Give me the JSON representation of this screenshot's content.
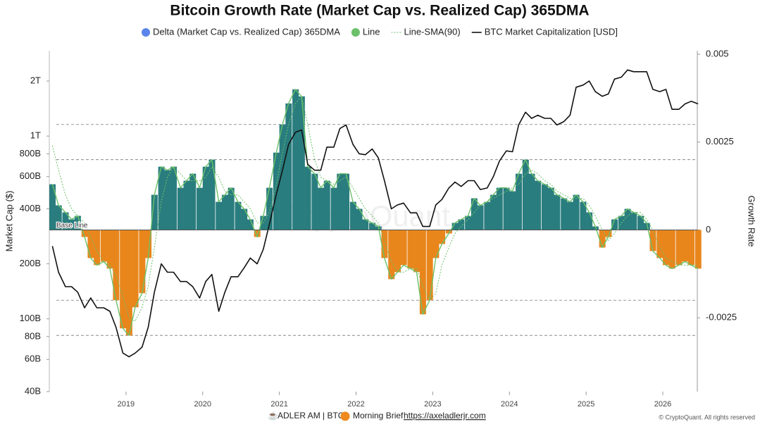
{
  "chart_data": {
    "type": "combo",
    "title": "Bitcoin Growth Rate (Market Cap vs. Realized Cap) 365DMA",
    "ylabel": "Market Cap ($)",
    "y2label": "Growth Rate",
    "annotation": "Base Line",
    "watermark": "CryptoQuant",
    "footer": {
      "source": "ADLER AM | BTC",
      "brief": "Morning Brief",
      "link": "https://axeladlerjr.com",
      "copyright": "© CryptoQuant. All rights reserved"
    },
    "x": [
      2018.04,
      2018.12,
      2018.21,
      2018.29,
      2018.37,
      2018.46,
      2018.54,
      2018.62,
      2018.71,
      2018.79,
      2018.87,
      2018.96,
      2019.04,
      2019.12,
      2019.21,
      2019.29,
      2019.37,
      2019.46,
      2019.54,
      2019.62,
      2019.71,
      2019.79,
      2019.87,
      2019.96,
      2020.04,
      2020.12,
      2020.21,
      2020.29,
      2020.37,
      2020.46,
      2020.54,
      2020.62,
      2020.71,
      2020.79,
      2020.87,
      2020.96,
      2021.04,
      2021.12,
      2021.21,
      2021.29,
      2021.37,
      2021.46,
      2021.54,
      2021.62,
      2021.71,
      2021.79,
      2021.87,
      2021.96,
      2022.04,
      2022.12,
      2022.21,
      2022.29,
      2022.37,
      2022.46,
      2022.54,
      2022.62,
      2022.71,
      2022.79,
      2022.87,
      2022.96,
      2023.04,
      2023.12,
      2023.21,
      2023.29,
      2023.37,
      2023.46,
      2023.54,
      2023.62,
      2023.71,
      2023.79,
      2023.87,
      2023.96,
      2024.04,
      2024.12,
      2024.21,
      2024.29,
      2024.37,
      2024.46,
      2024.54,
      2024.62,
      2024.71,
      2024.79,
      2024.87,
      2024.96,
      2025.04,
      2025.12,
      2025.21,
      2025.29,
      2025.37,
      2025.46,
      2025.54,
      2025.62,
      2025.71,
      2025.79,
      2025.87,
      2025.96,
      2026.04,
      2026.12,
      2026.21,
      2026.29,
      2026.37,
      2026.46
    ],
    "xlim": [
      2018.0,
      2026.45
    ],
    "xticks": [
      2019,
      2020,
      2021,
      2022,
      2023,
      2024,
      2025,
      2026
    ],
    "ylog": true,
    "ylim": [
      40000000000,
      2930000000000
    ],
    "yticks": [
      {
        "value": 40000000000,
        "label": "40B"
      },
      {
        "value": 60000000000,
        "label": "60B"
      },
      {
        "value": 80000000000,
        "label": "80B"
      },
      {
        "value": 100000000000,
        "label": "100B"
      },
      {
        "value": 200000000000,
        "label": "200B"
      },
      {
        "value": 400000000000,
        "label": "400B"
      },
      {
        "value": 600000000000,
        "label": "600B"
      },
      {
        "value": 800000000000,
        "label": "800B"
      },
      {
        "value": 1000000000000,
        "label": "1T"
      },
      {
        "value": 2000000000000,
        "label": "2T"
      }
    ],
    "y2lim": [
      -0.0046,
      0.0051
    ],
    "y2ticks": [
      -0.0025,
      0,
      0.0025,
      0.005
    ],
    "ref_lines": [
      0.003,
      0.002,
      -0.002,
      -0.003
    ],
    "pos_color": "#2a7d7e",
    "neg_color": "#e8861c",
    "series": [
      {
        "name": "Delta (Market Cap vs. Realized Cap) 365DMA",
        "color": "#5a84ea",
        "axis": "y2",
        "style": "bars",
        "values": [
          0.0013,
          0.0007,
          0.0005,
          0.0003,
          0.0004,
          -0.0002,
          -0.0008,
          -0.001,
          -0.0009,
          -0.0011,
          -0.002,
          -0.0028,
          -0.003,
          -0.0022,
          -0.0018,
          -0.0008,
          0.001,
          0.0018,
          0.0017,
          0.0018,
          0.0012,
          0.0014,
          0.0016,
          0.0012,
          0.0018,
          0.002,
          0.0008,
          0.001,
          0.0012,
          0.0008,
          0.0006,
          0.0003,
          -0.0002,
          0.0004,
          0.0012,
          0.0022,
          0.003,
          0.0036,
          0.004,
          0.0038,
          0.0018,
          0.0016,
          0.0012,
          0.0014,
          0.0012,
          0.0016,
          0.0016,
          0.0008,
          0.0006,
          0.0003,
          0.0002,
          0.0001,
          -0.0008,
          -0.0014,
          -0.0012,
          -0.001,
          -0.0011,
          -0.0012,
          -0.0024,
          -0.002,
          -0.0008,
          -0.0004,
          -0.0001,
          0.0002,
          0.0003,
          0.0004,
          0.0009,
          0.0007,
          0.0008,
          0.001,
          0.0012,
          0.0012,
          0.0011,
          0.0016,
          0.002,
          0.0016,
          0.0014,
          0.0013,
          0.0012,
          0.001,
          0.0009,
          0.0008,
          0.001,
          0.0008,
          0.0005,
          0.0001,
          -0.0005,
          -0.0002,
          0.0003,
          0.0004,
          0.0006,
          0.0005,
          0.0004,
          0.0002,
          -0.0006,
          -0.0008,
          -0.001,
          -0.0011,
          -0.001,
          -0.0009,
          -0.001,
          -0.0011
        ]
      },
      {
        "name": "Line",
        "color": "#6cc06a",
        "axis": "y2",
        "style": "line",
        "values": [
          0.0013,
          0.0007,
          0.0005,
          0.0003,
          0.0004,
          -0.0002,
          -0.0008,
          -0.001,
          -0.0009,
          -0.0011,
          -0.002,
          -0.0028,
          -0.003,
          -0.0022,
          -0.0018,
          -0.0008,
          0.001,
          0.0018,
          0.0017,
          0.0018,
          0.0012,
          0.0014,
          0.0016,
          0.0012,
          0.0018,
          0.002,
          0.0008,
          0.001,
          0.0012,
          0.0008,
          0.0006,
          0.0003,
          -0.0002,
          0.0004,
          0.0012,
          0.0022,
          0.003,
          0.0036,
          0.004,
          0.0038,
          0.0018,
          0.0016,
          0.0012,
          0.0014,
          0.0012,
          0.0016,
          0.0016,
          0.0008,
          0.0006,
          0.0003,
          0.0002,
          0.0001,
          -0.0008,
          -0.0014,
          -0.0012,
          -0.001,
          -0.0011,
          -0.0012,
          -0.0024,
          -0.002,
          -0.0008,
          -0.0004,
          -0.0001,
          0.0002,
          0.0003,
          0.0004,
          0.0009,
          0.0007,
          0.0008,
          0.001,
          0.0012,
          0.0012,
          0.0011,
          0.0016,
          0.002,
          0.0016,
          0.0014,
          0.0013,
          0.0012,
          0.001,
          0.0009,
          0.0008,
          0.001,
          0.0008,
          0.0005,
          0.0001,
          -0.0005,
          -0.0002,
          0.0003,
          0.0004,
          0.0006,
          0.0005,
          0.0004,
          0.0002,
          -0.0006,
          -0.0008,
          -0.001,
          -0.0011,
          -0.001,
          -0.0009,
          -0.001,
          -0.0011
        ]
      },
      {
        "name": "Line-SMA(90)",
        "color": "#6cc06a",
        "axis": "y2",
        "style": "dotted",
        "values": [
          0.0024,
          0.0017,
          0.001,
          0.0006,
          0.0004,
          0.0002,
          -0.0002,
          -0.0006,
          -0.0009,
          -0.001,
          -0.0013,
          -0.0019,
          -0.0025,
          -0.0026,
          -0.0022,
          -0.0016,
          -0.0005,
          0.0008,
          0.0015,
          0.0018,
          0.0016,
          0.0014,
          0.0014,
          0.0014,
          0.0015,
          0.0018,
          0.0015,
          0.0011,
          0.001,
          0.001,
          0.0008,
          0.0006,
          0.0002,
          0.0002,
          0.0005,
          0.0013,
          0.0022,
          0.003,
          0.0036,
          0.0038,
          0.003,
          0.002,
          0.0015,
          0.0014,
          0.0013,
          0.0014,
          0.0015,
          0.0012,
          0.0009,
          0.0006,
          0.0004,
          0.0002,
          -0.0003,
          -0.0009,
          -0.0012,
          -0.0012,
          -0.0011,
          -0.0011,
          -0.0016,
          -0.002,
          -0.0018,
          -0.001,
          -0.0005,
          -0.0001,
          0.0001,
          0.0003,
          0.0005,
          0.0007,
          0.0008,
          0.0009,
          0.001,
          0.0011,
          0.0012,
          0.0013,
          0.0016,
          0.0017,
          0.0016,
          0.0014,
          0.0013,
          0.0011,
          0.001,
          0.0009,
          0.0009,
          0.0009,
          0.0007,
          0.0004,
          0.0,
          -0.0003,
          -0.0001,
          0.0002,
          0.0004,
          0.0005,
          0.0005,
          0.0003,
          0.0,
          -0.0005,
          -0.0008,
          -0.0009,
          -0.001,
          -0.001,
          -0.001,
          -0.001
        ]
      },
      {
        "name": "BTC Market Capitalization [USD]",
        "color": "#111111",
        "axis": "y",
        "style": "line",
        "values": [
          250000000000.0,
          180000000000.0,
          150000000000.0,
          150000000000.0,
          140000000000.0,
          115000000000.0,
          130000000000.0,
          115000000000.0,
          115000000000.0,
          110000000000.0,
          90000000000.0,
          65000000000.0,
          62000000000.0,
          65000000000.0,
          70000000000.0,
          90000000000.0,
          140000000000.0,
          200000000000.0,
          180000000000.0,
          180000000000.0,
          160000000000.0,
          160000000000.0,
          150000000000.0,
          130000000000.0,
          160000000000.0,
          175000000000.0,
          110000000000.0,
          140000000000.0,
          170000000000.0,
          170000000000.0,
          190000000000.0,
          215000000000.0,
          200000000000.0,
          240000000000.0,
          330000000000.0,
          480000000000.0,
          650000000000.0,
          900000000000.0,
          1050000000000.0,
          1080000000000.0,
          700000000000.0,
          650000000000.0,
          650000000000.0,
          870000000000.0,
          870000000000.0,
          1100000000000.0,
          1150000000000.0,
          900000000000.0,
          800000000000.0,
          790000000000.0,
          850000000000.0,
          760000000000.0,
          570000000000.0,
          400000000000.0,
          420000000000.0,
          430000000000.0,
          380000000000.0,
          380000000000.0,
          320000000000.0,
          320000000000.0,
          420000000000.0,
          450000000000.0,
          520000000000.0,
          560000000000.0,
          530000000000.0,
          570000000000.0,
          570000000000.0,
          510000000000.0,
          520000000000.0,
          600000000000.0,
          730000000000.0,
          830000000000.0,
          820000000000.0,
          1150000000000.0,
          1350000000000.0,
          1250000000000.0,
          1300000000000.0,
          1250000000000.0,
          1250000000000.0,
          1150000000000.0,
          1200000000000.0,
          1300000000000.0,
          1850000000000.0,
          1900000000000.0,
          2000000000000.0,
          1750000000000.0,
          1650000000000.0,
          1700000000000.0,
          2050000000000.0,
          2100000000000.0,
          2300000000000.0,
          2250000000000.0,
          2250000000000.0,
          2250000000000.0,
          1800000000000.0,
          1750000000000.0,
          1800000000000.0,
          1400000000000.0,
          1400000000000.0,
          1500000000000.0,
          1550000000000.0,
          1500000000000.0
        ]
      }
    ]
  }
}
